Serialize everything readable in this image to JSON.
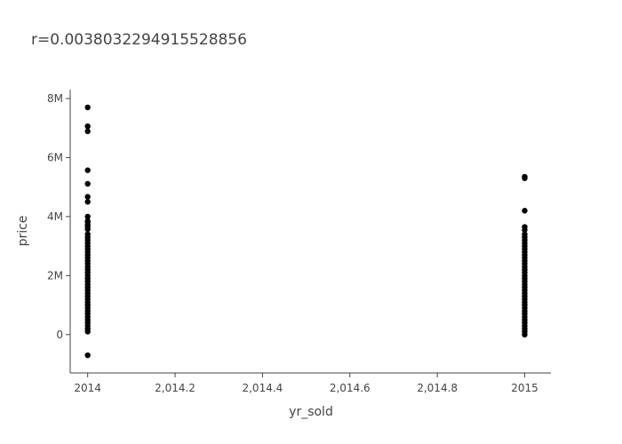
{
  "chart_data": {
    "type": "scatter",
    "title": "r=0.003803229491552885​6",
    "xlabel": "yr_sold",
    "ylabel": "price",
    "xlim": [
      2013.96,
      2015.06
    ],
    "ylim": [
      -1300000,
      8300000
    ],
    "grid": false,
    "marker_color": "#000000",
    "x_ticks": [
      {
        "value": 2014,
        "label": "2014"
      },
      {
        "value": 2014.2,
        "label": "2,014.2"
      },
      {
        "value": 2014.4,
        "label": "2,014.4"
      },
      {
        "value": 2014.6,
        "label": "2,014.6"
      },
      {
        "value": 2014.8,
        "label": "2,014.8"
      },
      {
        "value": 2015,
        "label": "2015"
      }
    ],
    "y_ticks": [
      {
        "value": 0,
        "label": "0"
      },
      {
        "value": 2000000,
        "label": "2M"
      },
      {
        "value": 4000000,
        "label": "4M"
      },
      {
        "value": 6000000,
        "label": "6M"
      },
      {
        "value": 8000000,
        "label": "8M"
      }
    ],
    "series": [
      {
        "x_value": 2014,
        "y": [
          7700000,
          7060000,
          6890000,
          5570000,
          5110000,
          4670000,
          4500000,
          4000000,
          3850000,
          3800000,
          3710000,
          3650000,
          3570000,
          3400000,
          3300000,
          3200000,
          3100000,
          3000000,
          2900000,
          2800000,
          2700000,
          2600000,
          2500000,
          2400000,
          2300000,
          2200000,
          2100000,
          2000000,
          1900000,
          1800000,
          1700000,
          1600000,
          1500000,
          1400000,
          1300000,
          1200000,
          1100000,
          1000000,
          900000,
          800000,
          700000,
          600000,
          500000,
          400000,
          300000,
          200000,
          100000,
          -700000
        ]
      },
      {
        "x_value": 2015,
        "y": [
          5350000,
          5300000,
          4200000,
          3650000,
          3550000,
          3400000,
          3300000,
          3200000,
          3100000,
          3000000,
          2900000,
          2800000,
          2700000,
          2600000,
          2500000,
          2400000,
          2300000,
          2200000,
          2100000,
          2000000,
          1900000,
          1800000,
          1700000,
          1600000,
          1500000,
          1400000,
          1300000,
          1200000,
          1100000,
          1000000,
          900000,
          800000,
          700000,
          600000,
          500000,
          400000,
          300000,
          200000,
          100000,
          0
        ]
      }
    ]
  }
}
